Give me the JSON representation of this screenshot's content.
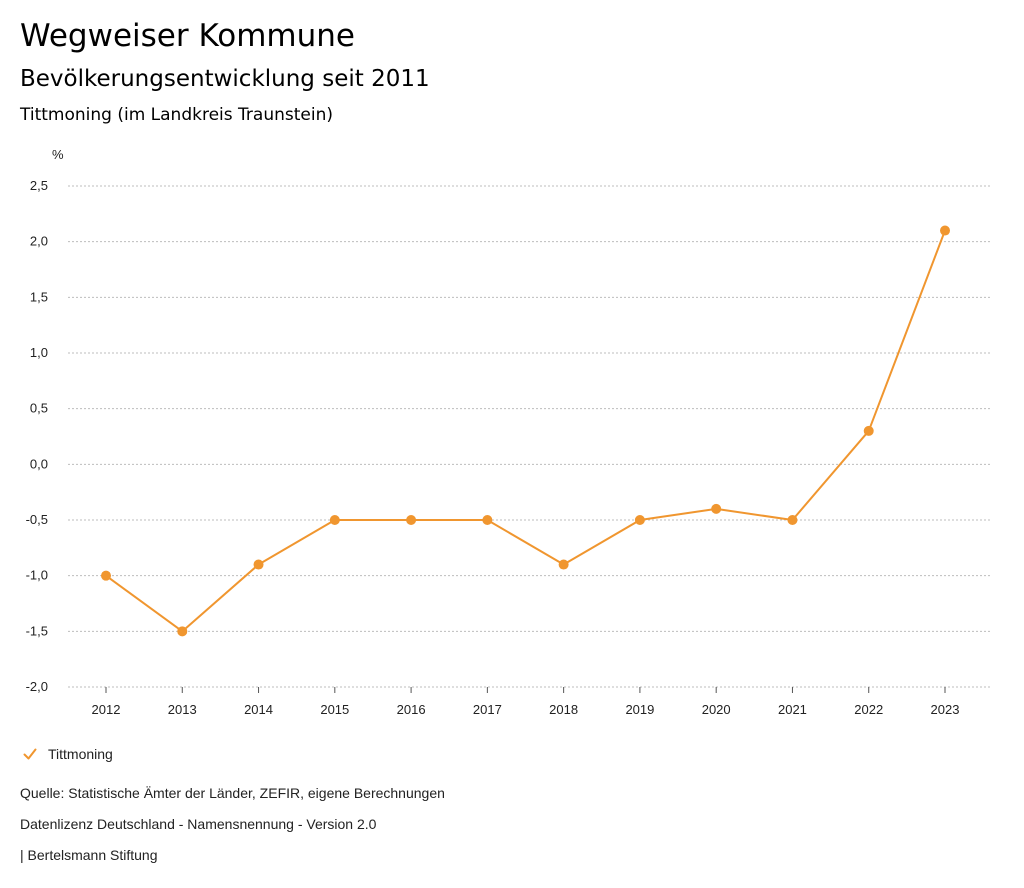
{
  "header": {
    "title": "Wegweiser Kommune",
    "subtitle": "Bevölkerungsentwicklung seit 2011",
    "region": "Tittmoning (im Landkreis Traunstein)"
  },
  "chart_data": {
    "type": "line",
    "title": "Bevölkerungsentwicklung seit 2011",
    "ylabel": "%",
    "xlabel": "",
    "categories": [
      "2012",
      "2013",
      "2014",
      "2015",
      "2016",
      "2017",
      "2018",
      "2019",
      "2020",
      "2021",
      "2022",
      "2023"
    ],
    "series": [
      {
        "name": "Tittmoning",
        "color": "#f0962f",
        "values": [
          -1.0,
          -1.5,
          -0.9,
          -0.5,
          -0.5,
          -0.5,
          -0.9,
          -0.5,
          -0.4,
          -0.5,
          0.3,
          2.1
        ]
      }
    ],
    "ylim": [
      -2.0,
      2.5
    ],
    "yticks": [
      2.5,
      2.0,
      1.5,
      1.0,
      0.5,
      0.0,
      -0.5,
      -1.0,
      -1.5,
      -2.0
    ],
    "ytick_labels": [
      "2,5",
      "2,0",
      "1,5",
      "1,0",
      "0,5",
      "0,0",
      "-0,5",
      "-1,0",
      "-1,5",
      "-2,0"
    ],
    "grid": true,
    "legend_position": "bottom-left"
  },
  "legend": {
    "icon": "checkmark-icon",
    "label": "Tittmoning"
  },
  "footer": {
    "source": "Quelle: Statistische Ämter der Länder, ZEFIR, eigene Berechnungen",
    "license": "Datenlizenz Deutschland - Namensnennung - Version 2.0",
    "publisher": "| Bertelsmann Stiftung"
  },
  "colors": {
    "series": "#f0962f",
    "grid": "#bdbdbd",
    "axis": "#555555"
  }
}
